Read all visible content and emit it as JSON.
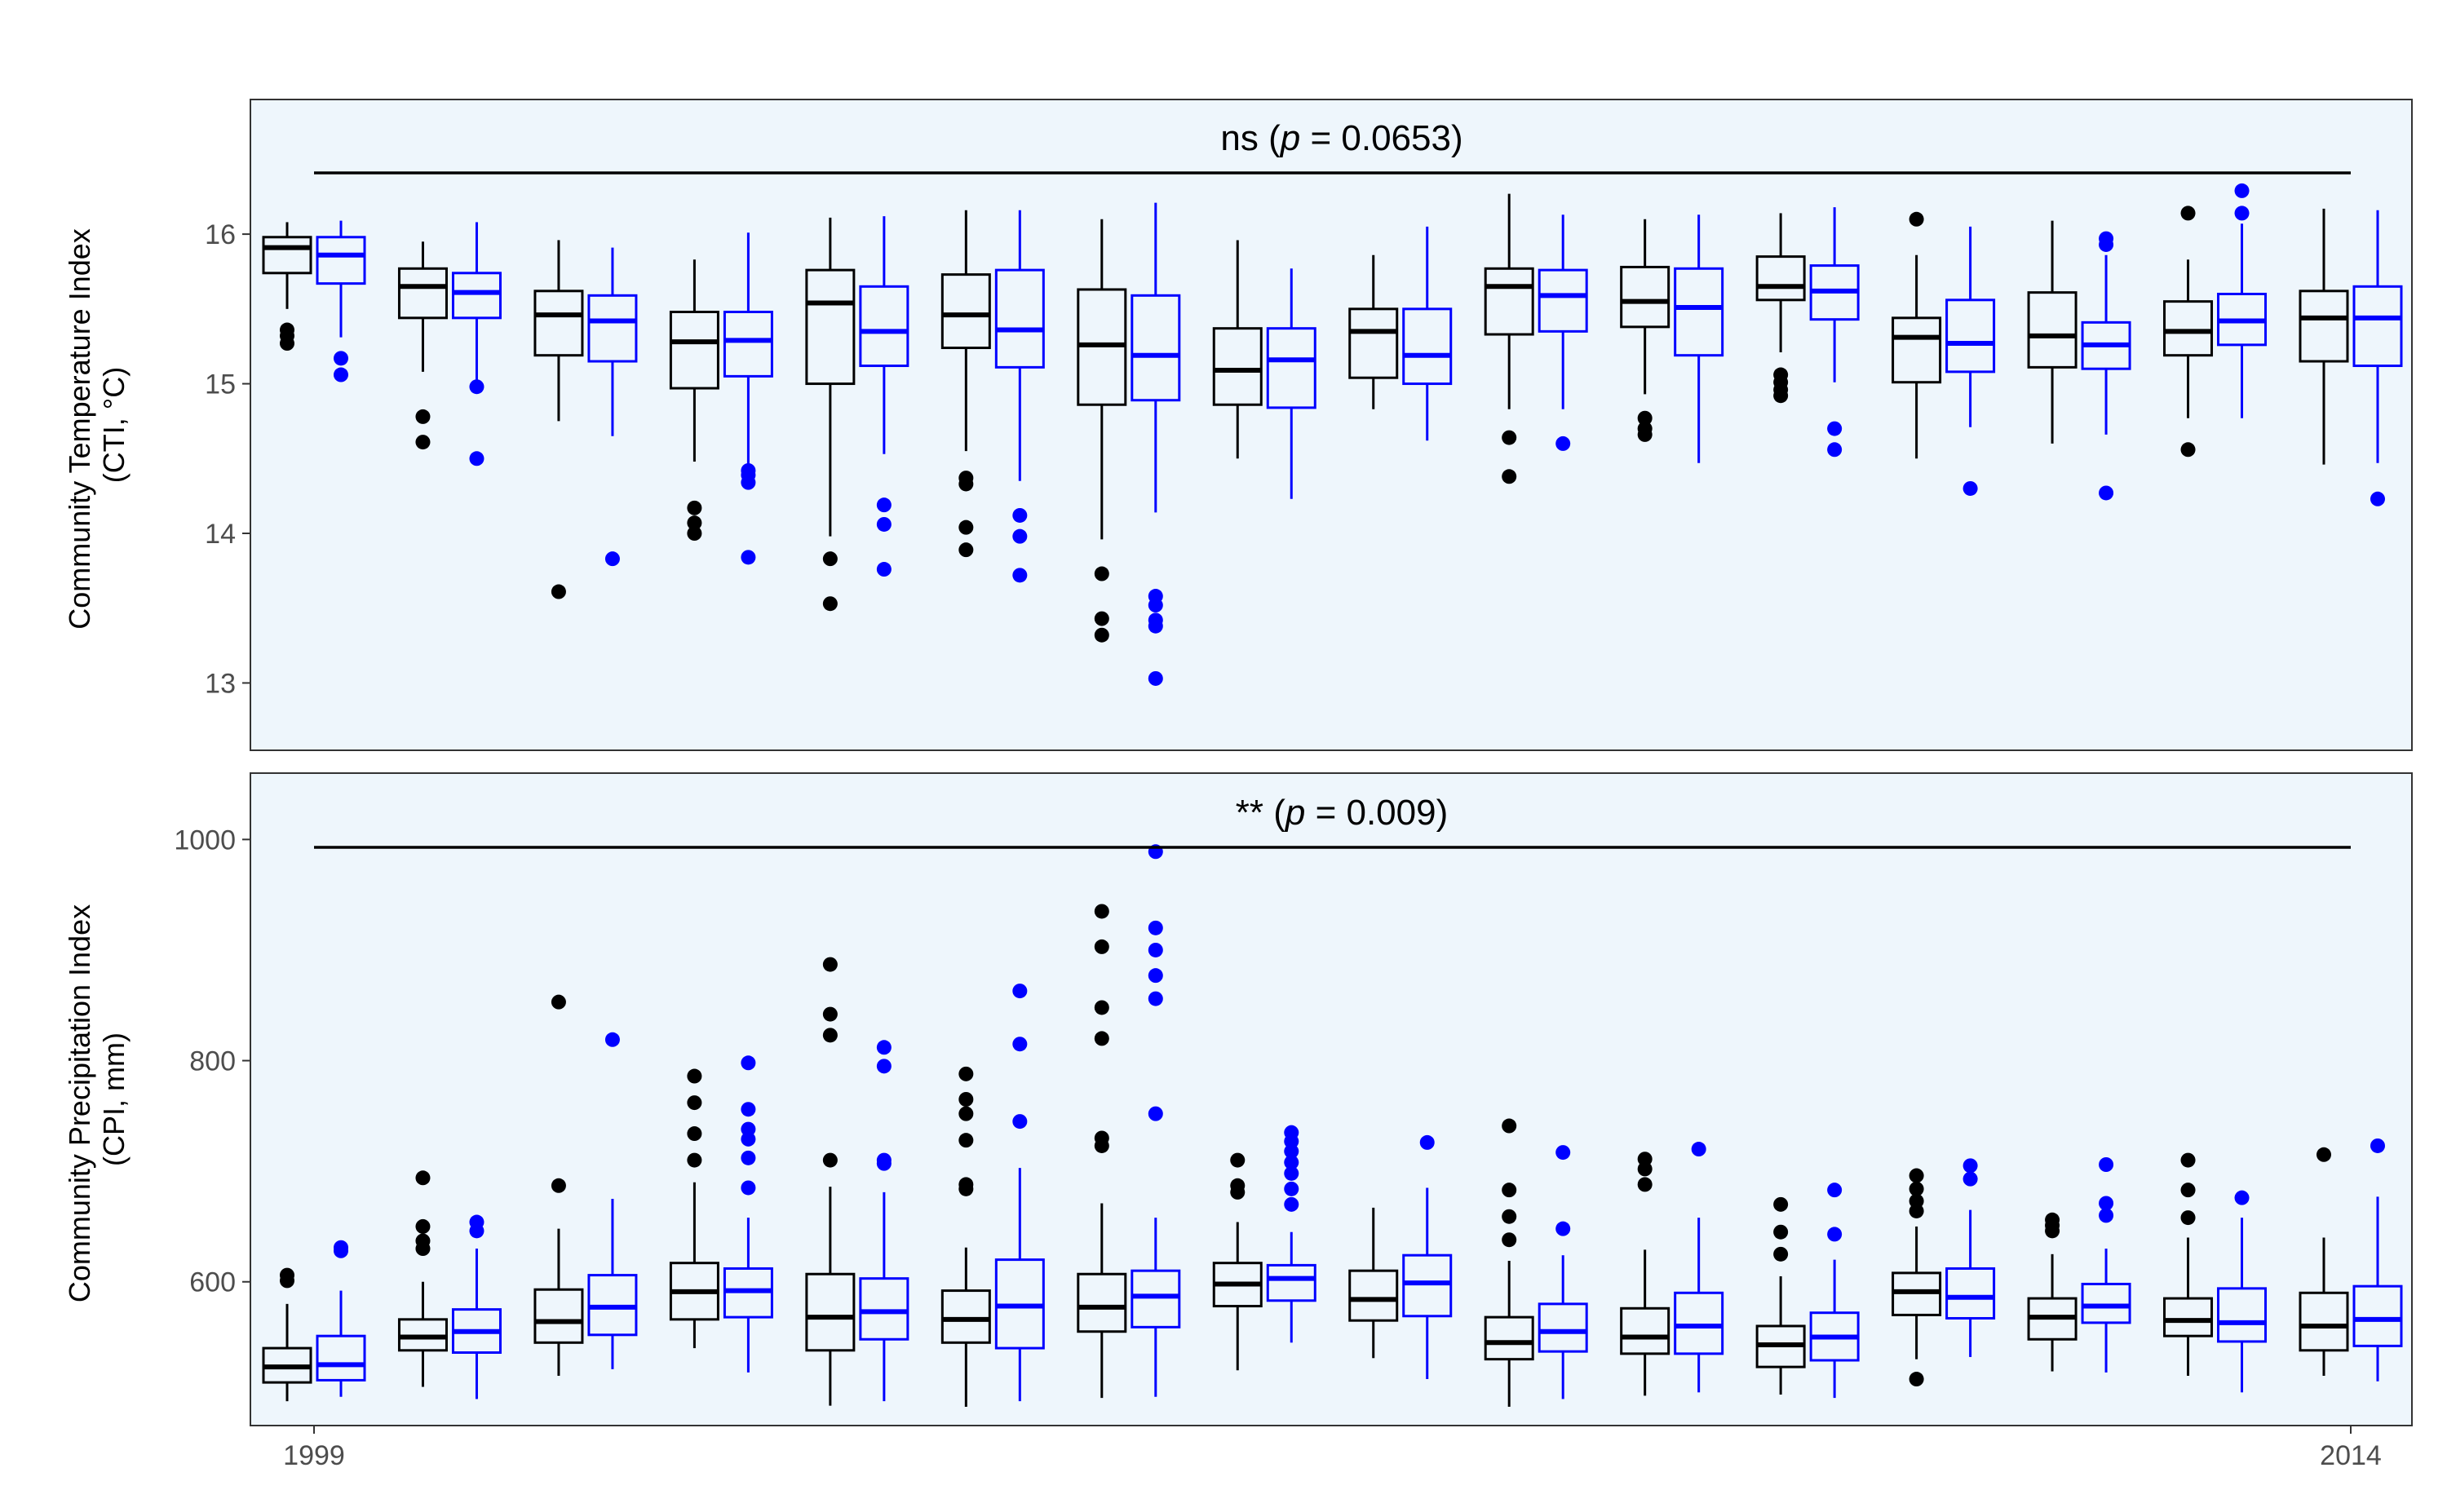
{
  "colors": {
    "panel_bg": "#eef6fc",
    "panel_border": "#333333",
    "group_a": "#000000",
    "group_b": "#0000ff"
  },
  "x_axis": {
    "first_label": "1999",
    "last_label": "2014"
  },
  "chart_data": [
    {
      "type": "box",
      "ylabel_line1": "Community Temperature Index",
      "ylabel_line2": "(CTI, °C)",
      "ylim": [
        12.55,
        16.9
      ],
      "yticks": [
        13,
        14,
        15,
        16
      ],
      "annotation": {
        "prefix": "ns (",
        "p_symbol": "p",
        "suffix": " = 0.0653)"
      },
      "series": [
        {
          "color": "#000000",
          "boxes": [
            {
              "min": 15.5,
              "q1": 15.74,
              "median": 15.91,
              "q3": 15.98,
              "max": 16.08,
              "outliers": [
                15.36,
                15.32,
                15.27
              ]
            },
            {
              "min": 15.08,
              "q1": 15.44,
              "median": 15.65,
              "q3": 15.77,
              "max": 15.95,
              "outliers": [
                14.78,
                14.61
              ]
            },
            {
              "min": 14.75,
              "q1": 15.19,
              "median": 15.46,
              "q3": 15.62,
              "max": 15.96,
              "outliers": [
                13.61
              ]
            },
            {
              "min": 14.48,
              "q1": 14.97,
              "median": 15.28,
              "q3": 15.48,
              "max": 15.83,
              "outliers": [
                14.17,
                14.07,
                14.0
              ]
            },
            {
              "min": 13.98,
              "q1": 15.0,
              "median": 15.54,
              "q3": 15.76,
              "max": 16.11,
              "outliers": [
                13.83,
                13.53
              ]
            },
            {
              "min": 14.55,
              "q1": 15.24,
              "median": 15.46,
              "q3": 15.73,
              "max": 16.16,
              "outliers": [
                14.37,
                14.33,
                14.04,
                13.89
              ]
            },
            {
              "min": 13.96,
              "q1": 14.86,
              "median": 15.26,
              "q3": 15.63,
              "max": 16.1,
              "outliers": [
                13.73,
                13.43,
                13.32
              ]
            },
            {
              "min": 14.5,
              "q1": 14.86,
              "median": 15.09,
              "q3": 15.37,
              "max": 15.96,
              "outliers": []
            },
            {
              "min": 14.83,
              "q1": 15.04,
              "median": 15.35,
              "q3": 15.5,
              "max": 15.86,
              "outliers": []
            },
            {
              "min": 14.83,
              "q1": 15.33,
              "median": 15.65,
              "q3": 15.77,
              "max": 16.27,
              "outliers": [
                14.64,
                14.38
              ]
            },
            {
              "min": 14.93,
              "q1": 15.38,
              "median": 15.55,
              "q3": 15.78,
              "max": 16.1,
              "outliers": [
                14.77,
                14.7,
                14.66
              ]
            },
            {
              "min": 15.21,
              "q1": 15.56,
              "median": 15.65,
              "q3": 15.85,
              "max": 16.14,
              "outliers": [
                15.06,
                15.01,
                14.96,
                14.92
              ]
            },
            {
              "min": 14.5,
              "q1": 15.01,
              "median": 15.31,
              "q3": 15.44,
              "max": 15.86,
              "outliers": [
                16.1
              ]
            },
            {
              "min": 14.6,
              "q1": 15.11,
              "median": 15.32,
              "q3": 15.61,
              "max": 16.09,
              "outliers": []
            },
            {
              "min": 14.77,
              "q1": 15.19,
              "median": 15.35,
              "q3": 15.55,
              "max": 15.83,
              "outliers": [
                16.14,
                14.56
              ]
            },
            {
              "min": 14.46,
              "q1": 15.15,
              "median": 15.44,
              "q3": 15.62,
              "max": 16.17,
              "outliers": []
            }
          ]
        },
        {
          "color": "#0000ff",
          "boxes": [
            {
              "min": 15.31,
              "q1": 15.67,
              "median": 15.86,
              "q3": 15.98,
              "max": 16.09,
              "outliers": [
                15.17,
                15.06
              ]
            },
            {
              "min": 15.02,
              "q1": 15.44,
              "median": 15.61,
              "q3": 15.74,
              "max": 16.08,
              "outliers": [
                14.98,
                14.5
              ]
            },
            {
              "min": 14.65,
              "q1": 15.15,
              "median": 15.42,
              "q3": 15.59,
              "max": 15.91,
              "outliers": [
                13.83
              ]
            },
            {
              "min": 14.45,
              "q1": 15.05,
              "median": 15.29,
              "q3": 15.48,
              "max": 16.01,
              "outliers": [
                14.42,
                14.39,
                14.34,
                13.84
              ]
            },
            {
              "min": 14.53,
              "q1": 15.12,
              "median": 15.35,
              "q3": 15.65,
              "max": 16.12,
              "outliers": [
                14.19,
                14.06,
                13.76
              ]
            },
            {
              "min": 14.35,
              "q1": 15.11,
              "median": 15.36,
              "q3": 15.76,
              "max": 16.16,
              "outliers": [
                14.12,
                13.98,
                13.72
              ]
            },
            {
              "min": 14.14,
              "q1": 14.89,
              "median": 15.19,
              "q3": 15.59,
              "max": 16.21,
              "outliers": [
                13.58,
                13.52,
                13.42,
                13.38,
                13.03
              ]
            },
            {
              "min": 14.23,
              "q1": 14.84,
              "median": 15.16,
              "q3": 15.37,
              "max": 15.77,
              "outliers": []
            },
            {
              "min": 14.62,
              "q1": 15.0,
              "median": 15.19,
              "q3": 15.5,
              "max": 16.05,
              "outliers": []
            },
            {
              "min": 14.83,
              "q1": 15.35,
              "median": 15.59,
              "q3": 15.76,
              "max": 16.13,
              "outliers": [
                14.6
              ]
            },
            {
              "min": 14.47,
              "q1": 15.19,
              "median": 15.51,
              "q3": 15.77,
              "max": 16.13,
              "outliers": []
            },
            {
              "min": 15.01,
              "q1": 15.43,
              "median": 15.62,
              "q3": 15.79,
              "max": 16.18,
              "outliers": [
                14.7,
                14.56
              ]
            },
            {
              "min": 14.71,
              "q1": 15.08,
              "median": 15.27,
              "q3": 15.56,
              "max": 16.05,
              "outliers": [
                14.3
              ]
            },
            {
              "min": 14.66,
              "q1": 15.1,
              "median": 15.26,
              "q3": 15.41,
              "max": 15.86,
              "outliers": [
                15.97,
                15.93,
                14.27
              ]
            },
            {
              "min": 14.77,
              "q1": 15.26,
              "median": 15.42,
              "q3": 15.6,
              "max": 16.07,
              "outliers": [
                16.29,
                16.14
              ]
            },
            {
              "min": 14.47,
              "q1": 15.12,
              "median": 15.44,
              "q3": 15.65,
              "max": 16.16,
              "outliers": [
                14.23
              ]
            }
          ]
        }
      ]
    },
    {
      "type": "box",
      "ylabel_line1": "Community Precipitation Index",
      "ylabel_line2": "(CPI, mm)",
      "ylim": [
        470,
        1060
      ],
      "yticks": [
        600,
        800,
        1000
      ],
      "annotation": {
        "prefix": "** (",
        "p_symbol": "p",
        "suffix": " = 0.009)"
      },
      "series": [
        {
          "color": "#000000",
          "boxes": [
            {
              "min": 492,
              "q1": 509,
              "median": 523,
              "q3": 540,
              "max": 580,
              "outliers": [
                606,
                601
              ]
            },
            {
              "min": 505,
              "q1": 538,
              "median": 550,
              "q3": 566,
              "max": 600,
              "outliers": [
                694,
                650,
                637,
                630
              ]
            },
            {
              "min": 515,
              "q1": 545,
              "median": 564,
              "q3": 593,
              "max": 648,
              "outliers": [
                853,
                687
              ]
            },
            {
              "min": 540,
              "q1": 566,
              "median": 591,
              "q3": 617,
              "max": 690,
              "outliers": [
                786,
                762,
                734,
                710
              ]
            },
            {
              "min": 488,
              "q1": 538,
              "median": 568,
              "q3": 607,
              "max": 686,
              "outliers": [
                887,
                842,
                823,
                710
              ]
            },
            {
              "min": 487,
              "q1": 545,
              "median": 566,
              "q3": 592,
              "max": 631,
              "outliers": [
                788,
                765,
                752,
                728,
                688,
                684
              ]
            },
            {
              "min": 495,
              "q1": 555,
              "median": 577,
              "q3": 607,
              "max": 671,
              "outliers": [
                935,
                903,
                848,
                820,
                730,
                723
              ]
            },
            {
              "min": 520,
              "q1": 578,
              "median": 598,
              "q3": 617,
              "max": 654,
              "outliers": [
                710,
                687,
                681
              ]
            },
            {
              "min": 531,
              "q1": 565,
              "median": 584,
              "q3": 610,
              "max": 667,
              "outliers": []
            },
            {
              "min": 487,
              "q1": 530,
              "median": 545,
              "q3": 568,
              "max": 619,
              "outliers": [
                741,
                683,
                659,
                638
              ]
            },
            {
              "min": 497,
              "q1": 535,
              "median": 550,
              "q3": 576,
              "max": 629,
              "outliers": [
                711,
                702,
                688
              ]
            },
            {
              "min": 498,
              "q1": 523,
              "median": 543,
              "q3": 560,
              "max": 605,
              "outliers": [
                670,
                645,
                625
              ]
            },
            {
              "min": 530,
              "q1": 570,
              "median": 591,
              "q3": 608,
              "max": 650,
              "outliers": [
                696,
                684,
                673,
                664,
                512
              ]
            },
            {
              "min": 519,
              "q1": 548,
              "median": 568,
              "q3": 585,
              "max": 625,
              "outliers": [
                656,
                651,
                646
              ]
            },
            {
              "min": 515,
              "q1": 551,
              "median": 565,
              "q3": 585,
              "max": 640,
              "outliers": [
                710,
                683,
                658
              ]
            },
            {
              "min": 515,
              "q1": 538,
              "median": 560,
              "q3": 590,
              "max": 640,
              "outliers": [
                715
              ]
            }
          ]
        },
        {
          "color": "#0000ff",
          "boxes": [
            {
              "min": 496,
              "q1": 511,
              "median": 525,
              "q3": 551,
              "max": 592,
              "outliers": [
                631,
                628
              ]
            },
            {
              "min": 494,
              "q1": 536,
              "median": 555,
              "q3": 575,
              "max": 630,
              "outliers": [
                654,
                646
              ]
            },
            {
              "min": 521,
              "q1": 552,
              "median": 577,
              "q3": 606,
              "max": 675,
              "outliers": [
                819
              ]
            },
            {
              "min": 518,
              "q1": 568,
              "median": 592,
              "q3": 612,
              "max": 658,
              "outliers": [
                798,
                756,
                738,
                729,
                712,
                685
              ]
            },
            {
              "min": 492,
              "q1": 548,
              "median": 573,
              "q3": 603,
              "max": 681,
              "outliers": [
                812,
                795,
                710,
                707
              ]
            },
            {
              "min": 492,
              "q1": 540,
              "median": 578,
              "q3": 620,
              "max": 703,
              "outliers": [
                863,
                815,
                745
              ]
            },
            {
              "min": 496,
              "q1": 559,
              "median": 587,
              "q3": 610,
              "max": 658,
              "outliers": [
                989,
                920,
                900,
                877,
                856,
                752
              ]
            },
            {
              "min": 545,
              "q1": 583,
              "median": 603,
              "q3": 615,
              "max": 645,
              "outliers": [
                735,
                727,
                718,
                708,
                698,
                684,
                670
              ]
            },
            {
              "min": 512,
              "q1": 569,
              "median": 599,
              "q3": 624,
              "max": 685,
              "outliers": [
                726
              ]
            },
            {
              "min": 494,
              "q1": 537,
              "median": 555,
              "q3": 580,
              "max": 624,
              "outliers": [
                717,
                648
              ]
            },
            {
              "min": 500,
              "q1": 535,
              "median": 560,
              "q3": 590,
              "max": 658,
              "outliers": [
                720
              ]
            },
            {
              "min": 495,
              "q1": 529,
              "median": 550,
              "q3": 572,
              "max": 620,
              "outliers": [
                683,
                643
              ]
            },
            {
              "min": 532,
              "q1": 567,
              "median": 586,
              "q3": 612,
              "max": 665,
              "outliers": [
                705,
                693
              ]
            },
            {
              "min": 518,
              "q1": 563,
              "median": 578,
              "q3": 598,
              "max": 630,
              "outliers": [
                706,
                671,
                660
              ]
            },
            {
              "min": 500,
              "q1": 546,
              "median": 563,
              "q3": 594,
              "max": 658,
              "outliers": [
                676
              ]
            },
            {
              "min": 510,
              "q1": 542,
              "median": 566,
              "q3": 596,
              "max": 677,
              "outliers": [
                723
              ]
            }
          ]
        }
      ]
    }
  ]
}
